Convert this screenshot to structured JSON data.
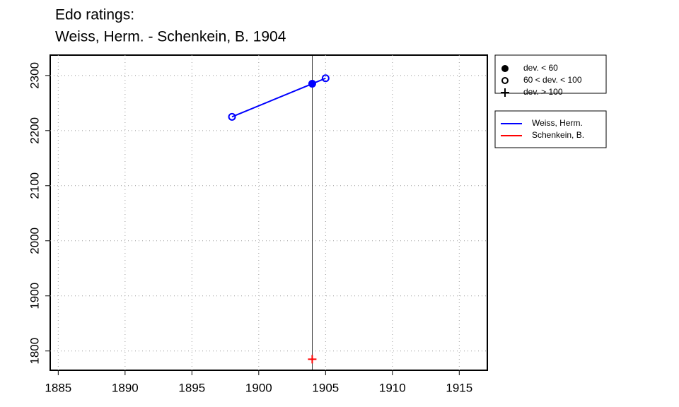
{
  "chart_data": {
    "type": "line",
    "title": "Edo ratings:",
    "subtitle": "Weiss, Herm. - Schenkein, B. 1904",
    "xlim": [
      1884.4,
      1917.1
    ],
    "ylim": [
      1765,
      2337
    ],
    "xticks": [
      1885,
      1890,
      1895,
      1900,
      1905,
      1910,
      1915
    ],
    "yticks": [
      1800,
      1900,
      2000,
      2100,
      2200,
      2300
    ],
    "grid": true,
    "vline": 1904,
    "marker_legend": [
      {
        "label": "dev. < 60",
        "marker": "filled"
      },
      {
        "label": "60 < dev. < 100",
        "marker": "open"
      },
      {
        "label": "dev. > 100",
        "marker": "plus"
      }
    ],
    "series": [
      {
        "name": "Weiss, Herm.",
        "color": "#0000ff",
        "x": [
          1898,
          1904,
          1905
        ],
        "values": [
          2225,
          2285,
          2295
        ],
        "markers": [
          "open",
          "filled",
          "open"
        ]
      },
      {
        "name": "Schenkein, B.",
        "color": "#ff0000",
        "x": [
          1904
        ],
        "values": [
          1785
        ],
        "markers": [
          "plus"
        ]
      }
    ]
  }
}
